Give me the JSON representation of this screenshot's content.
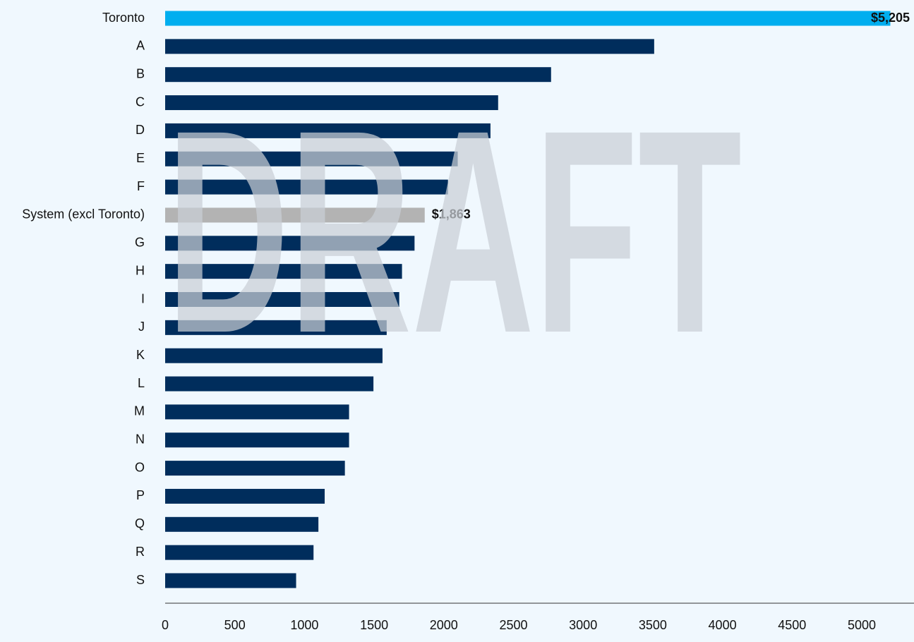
{
  "chart_data": {
    "type": "bar",
    "orientation": "horizontal",
    "categories": [
      "Toronto",
      "A",
      "B",
      "C",
      "D",
      "E",
      "F",
      "System (excl Toronto)",
      "G",
      "H",
      "I",
      "J",
      "K",
      "L",
      "M",
      "N",
      "O",
      "P",
      "Q",
      "R",
      "S"
    ],
    "values": [
      5205,
      3510,
      2770,
      2390,
      2335,
      2100,
      2030,
      1863,
      1790,
      1700,
      1680,
      1590,
      1560,
      1495,
      1320,
      1320,
      1290,
      1145,
      1100,
      1065,
      940
    ],
    "value_labels": [
      "$5,205",
      null,
      null,
      null,
      null,
      null,
      null,
      "$1,863",
      null,
      null,
      null,
      null,
      null,
      null,
      null,
      null,
      null,
      null,
      null,
      null,
      null
    ],
    "colors": [
      "#00aeef",
      "#002d5c",
      "#002d5c",
      "#002d5c",
      "#002d5c",
      "#002d5c",
      "#002d5c",
      "#b3b3b3",
      "#002d5c",
      "#002d5c",
      "#002d5c",
      "#002d5c",
      "#002d5c",
      "#002d5c",
      "#002d5c",
      "#002d5c",
      "#002d5c",
      "#002d5c",
      "#002d5c",
      "#002d5c",
      "#002d5c"
    ],
    "xlim": [
      0,
      5375
    ],
    "xticks": [
      0,
      500,
      1000,
      1500,
      2000,
      2500,
      3000,
      3500,
      4000,
      4500,
      5000
    ],
    "grid": false,
    "watermark": "DRAFT"
  }
}
